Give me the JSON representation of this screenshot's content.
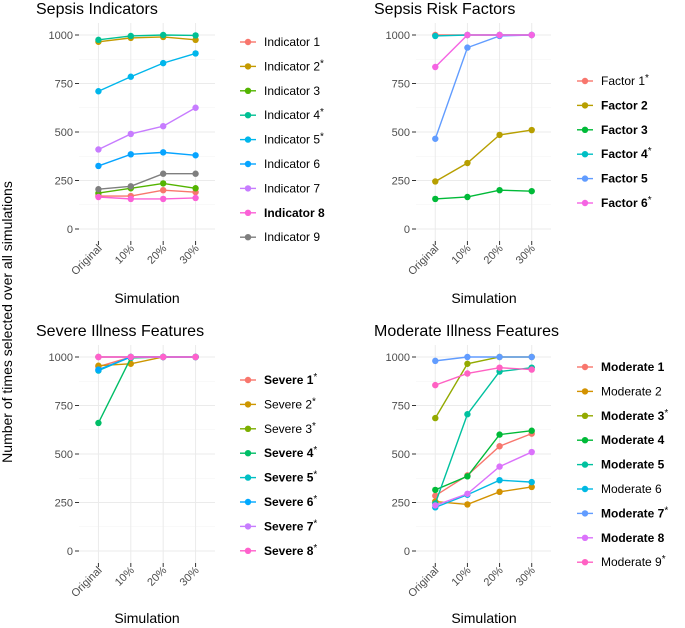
{
  "figure": {
    "ylabel": "Number of times selected over all simulations"
  },
  "chart_data": [
    {
      "type": "line",
      "title": "Sepsis Indicators",
      "xlabel": "Simulation",
      "categories": [
        "Original",
        "10%",
        "20%",
        "30%"
      ],
      "ylim": [
        0,
        1000
      ],
      "yticks": [
        0,
        250,
        500,
        750,
        1000
      ],
      "series": [
        {
          "name": "Indicator 1",
          "marker": "",
          "bold": false,
          "color": "#F8766D",
          "values": [
            170,
            170,
            200,
            190
          ]
        },
        {
          "name": "Indicator 2",
          "marker": "*",
          "bold": false,
          "color": "#C49A00",
          "values": [
            965,
            985,
            990,
            975
          ]
        },
        {
          "name": "Indicator 3",
          "marker": "",
          "bold": false,
          "color": "#53B400",
          "values": [
            185,
            210,
            235,
            210
          ]
        },
        {
          "name": "Indicator 4",
          "marker": "*",
          "bold": false,
          "color": "#00C094",
          "values": [
            975,
            995,
            1000,
            998
          ]
        },
        {
          "name": "Indicator 5",
          "marker": "*",
          "bold": false,
          "color": "#00B6EB",
          "values": [
            710,
            785,
            855,
            905
          ]
        },
        {
          "name": "Indicator 6",
          "marker": "",
          "bold": false,
          "color": "#06A4FF",
          "values": [
            325,
            385,
            395,
            380
          ]
        },
        {
          "name": "Indicator 7",
          "marker": "",
          "bold": false,
          "color": "#C77CFF",
          "values": [
            410,
            490,
            530,
            625
          ]
        },
        {
          "name": "Indicator 8",
          "marker": "",
          "bold": true,
          "color": "#FB61D7",
          "values": [
            165,
            155,
            155,
            160
          ]
        },
        {
          "name": "Indicator 9",
          "marker": "",
          "bold": false,
          "color": "#7F7F7F",
          "values": [
            205,
            220,
            285,
            285
          ]
        }
      ]
    },
    {
      "type": "line",
      "title": "Sepsis Risk Factors",
      "xlabel": "Simulation",
      "categories": [
        "Original",
        "10%",
        "20%",
        "30%"
      ],
      "ylim": [
        0,
        1000
      ],
      "yticks": [
        0,
        250,
        500,
        750,
        1000
      ],
      "series": [
        {
          "name": "Factor 1",
          "marker": "*",
          "bold": false,
          "color": "#F8766D",
          "values": [
            1000,
            1000,
            1000,
            1000
          ]
        },
        {
          "name": "Factor 2",
          "marker": "",
          "bold": true,
          "color": "#B79F00",
          "values": [
            245,
            340,
            485,
            510
          ]
        },
        {
          "name": "Factor 3",
          "marker": "",
          "bold": true,
          "color": "#00BA38",
          "values": [
            155,
            165,
            200,
            195
          ]
        },
        {
          "name": "Factor 4",
          "marker": "*",
          "bold": true,
          "color": "#00BFC4",
          "values": [
            995,
            1000,
            1000,
            1000
          ]
        },
        {
          "name": "Factor 5",
          "marker": "",
          "bold": true,
          "color": "#619CFF",
          "values": [
            465,
            935,
            995,
            1000
          ]
        },
        {
          "name": "Factor 6",
          "marker": "*",
          "bold": true,
          "color": "#F564E3",
          "values": [
            835,
            1000,
            1000,
            1000
          ]
        }
      ]
    },
    {
      "type": "line",
      "title": "Severe Illness Features",
      "xlabel": "Simulation",
      "categories": [
        "Original",
        "10%",
        "20%",
        "30%"
      ],
      "ylim": [
        0,
        1000
      ],
      "yticks": [
        0,
        250,
        500,
        750,
        1000
      ],
      "series": [
        {
          "name": "Severe 1",
          "marker": "*",
          "bold": true,
          "color": "#F8766D",
          "values": [
            950,
            1000,
            1000,
            1000
          ]
        },
        {
          "name": "Severe 2",
          "marker": "*",
          "bold": false,
          "color": "#CD9600",
          "values": [
            955,
            965,
            1000,
            1000
          ]
        },
        {
          "name": "Severe 3",
          "marker": "*",
          "bold": false,
          "color": "#7CAE00",
          "values": [
            1000,
            1000,
            1000,
            1000
          ]
        },
        {
          "name": "Severe 4",
          "marker": "*",
          "bold": true,
          "color": "#00BE67",
          "values": [
            660,
            995,
            1000,
            1000
          ]
        },
        {
          "name": "Severe 5",
          "marker": "*",
          "bold": true,
          "color": "#00BFC4",
          "values": [
            930,
            1000,
            1000,
            1000
          ]
        },
        {
          "name": "Severe 6",
          "marker": "*",
          "bold": true,
          "color": "#00A9FF",
          "values": [
            935,
            1000,
            1000,
            1000
          ]
        },
        {
          "name": "Severe 7",
          "marker": "*",
          "bold": true,
          "color": "#C77CFF",
          "values": [
            1000,
            1000,
            1000,
            1000
          ]
        },
        {
          "name": "Severe 8",
          "marker": "*",
          "bold": true,
          "color": "#FF61CC",
          "values": [
            1000,
            1000,
            1000,
            1000
          ]
        }
      ]
    },
    {
      "type": "line",
      "title": "Moderate Illness Features",
      "xlabel": "Simulation",
      "categories": [
        "Original",
        "10%",
        "20%",
        "30%"
      ],
      "ylim": [
        0,
        1000
      ],
      "yticks": [
        0,
        250,
        500,
        750,
        1000
      ],
      "series": [
        {
          "name": "Moderate 1",
          "marker": "",
          "bold": true,
          "color": "#F8766D",
          "values": [
            285,
            390,
            540,
            605
          ]
        },
        {
          "name": "Moderate 2",
          "marker": "",
          "bold": false,
          "color": "#D39200",
          "values": [
            255,
            240,
            305,
            330
          ]
        },
        {
          "name": "Moderate 3",
          "marker": "*",
          "bold": true,
          "color": "#93AA00",
          "values": [
            685,
            965,
            1000,
            1000
          ]
        },
        {
          "name": "Moderate 4",
          "marker": "",
          "bold": true,
          "color": "#00BA38",
          "values": [
            315,
            385,
            600,
            620
          ]
        },
        {
          "name": "Moderate 5",
          "marker": "",
          "bold": true,
          "color": "#00C19F",
          "values": [
            245,
            705,
            925,
            945
          ]
        },
        {
          "name": "Moderate 6",
          "marker": "",
          "bold": false,
          "color": "#00B9E3",
          "values": [
            225,
            290,
            365,
            355
          ]
        },
        {
          "name": "Moderate 7",
          "marker": "*",
          "bold": true,
          "color": "#619CFF",
          "values": [
            980,
            1000,
            1000,
            1000
          ]
        },
        {
          "name": "Moderate 8",
          "marker": "",
          "bold": true,
          "color": "#DB72FB",
          "values": [
            235,
            295,
            435,
            510
          ]
        },
        {
          "name": "Moderate 9",
          "marker": "*",
          "bold": false,
          "color": "#FF61C3",
          "values": [
            855,
            915,
            945,
            935
          ]
        }
      ]
    }
  ]
}
